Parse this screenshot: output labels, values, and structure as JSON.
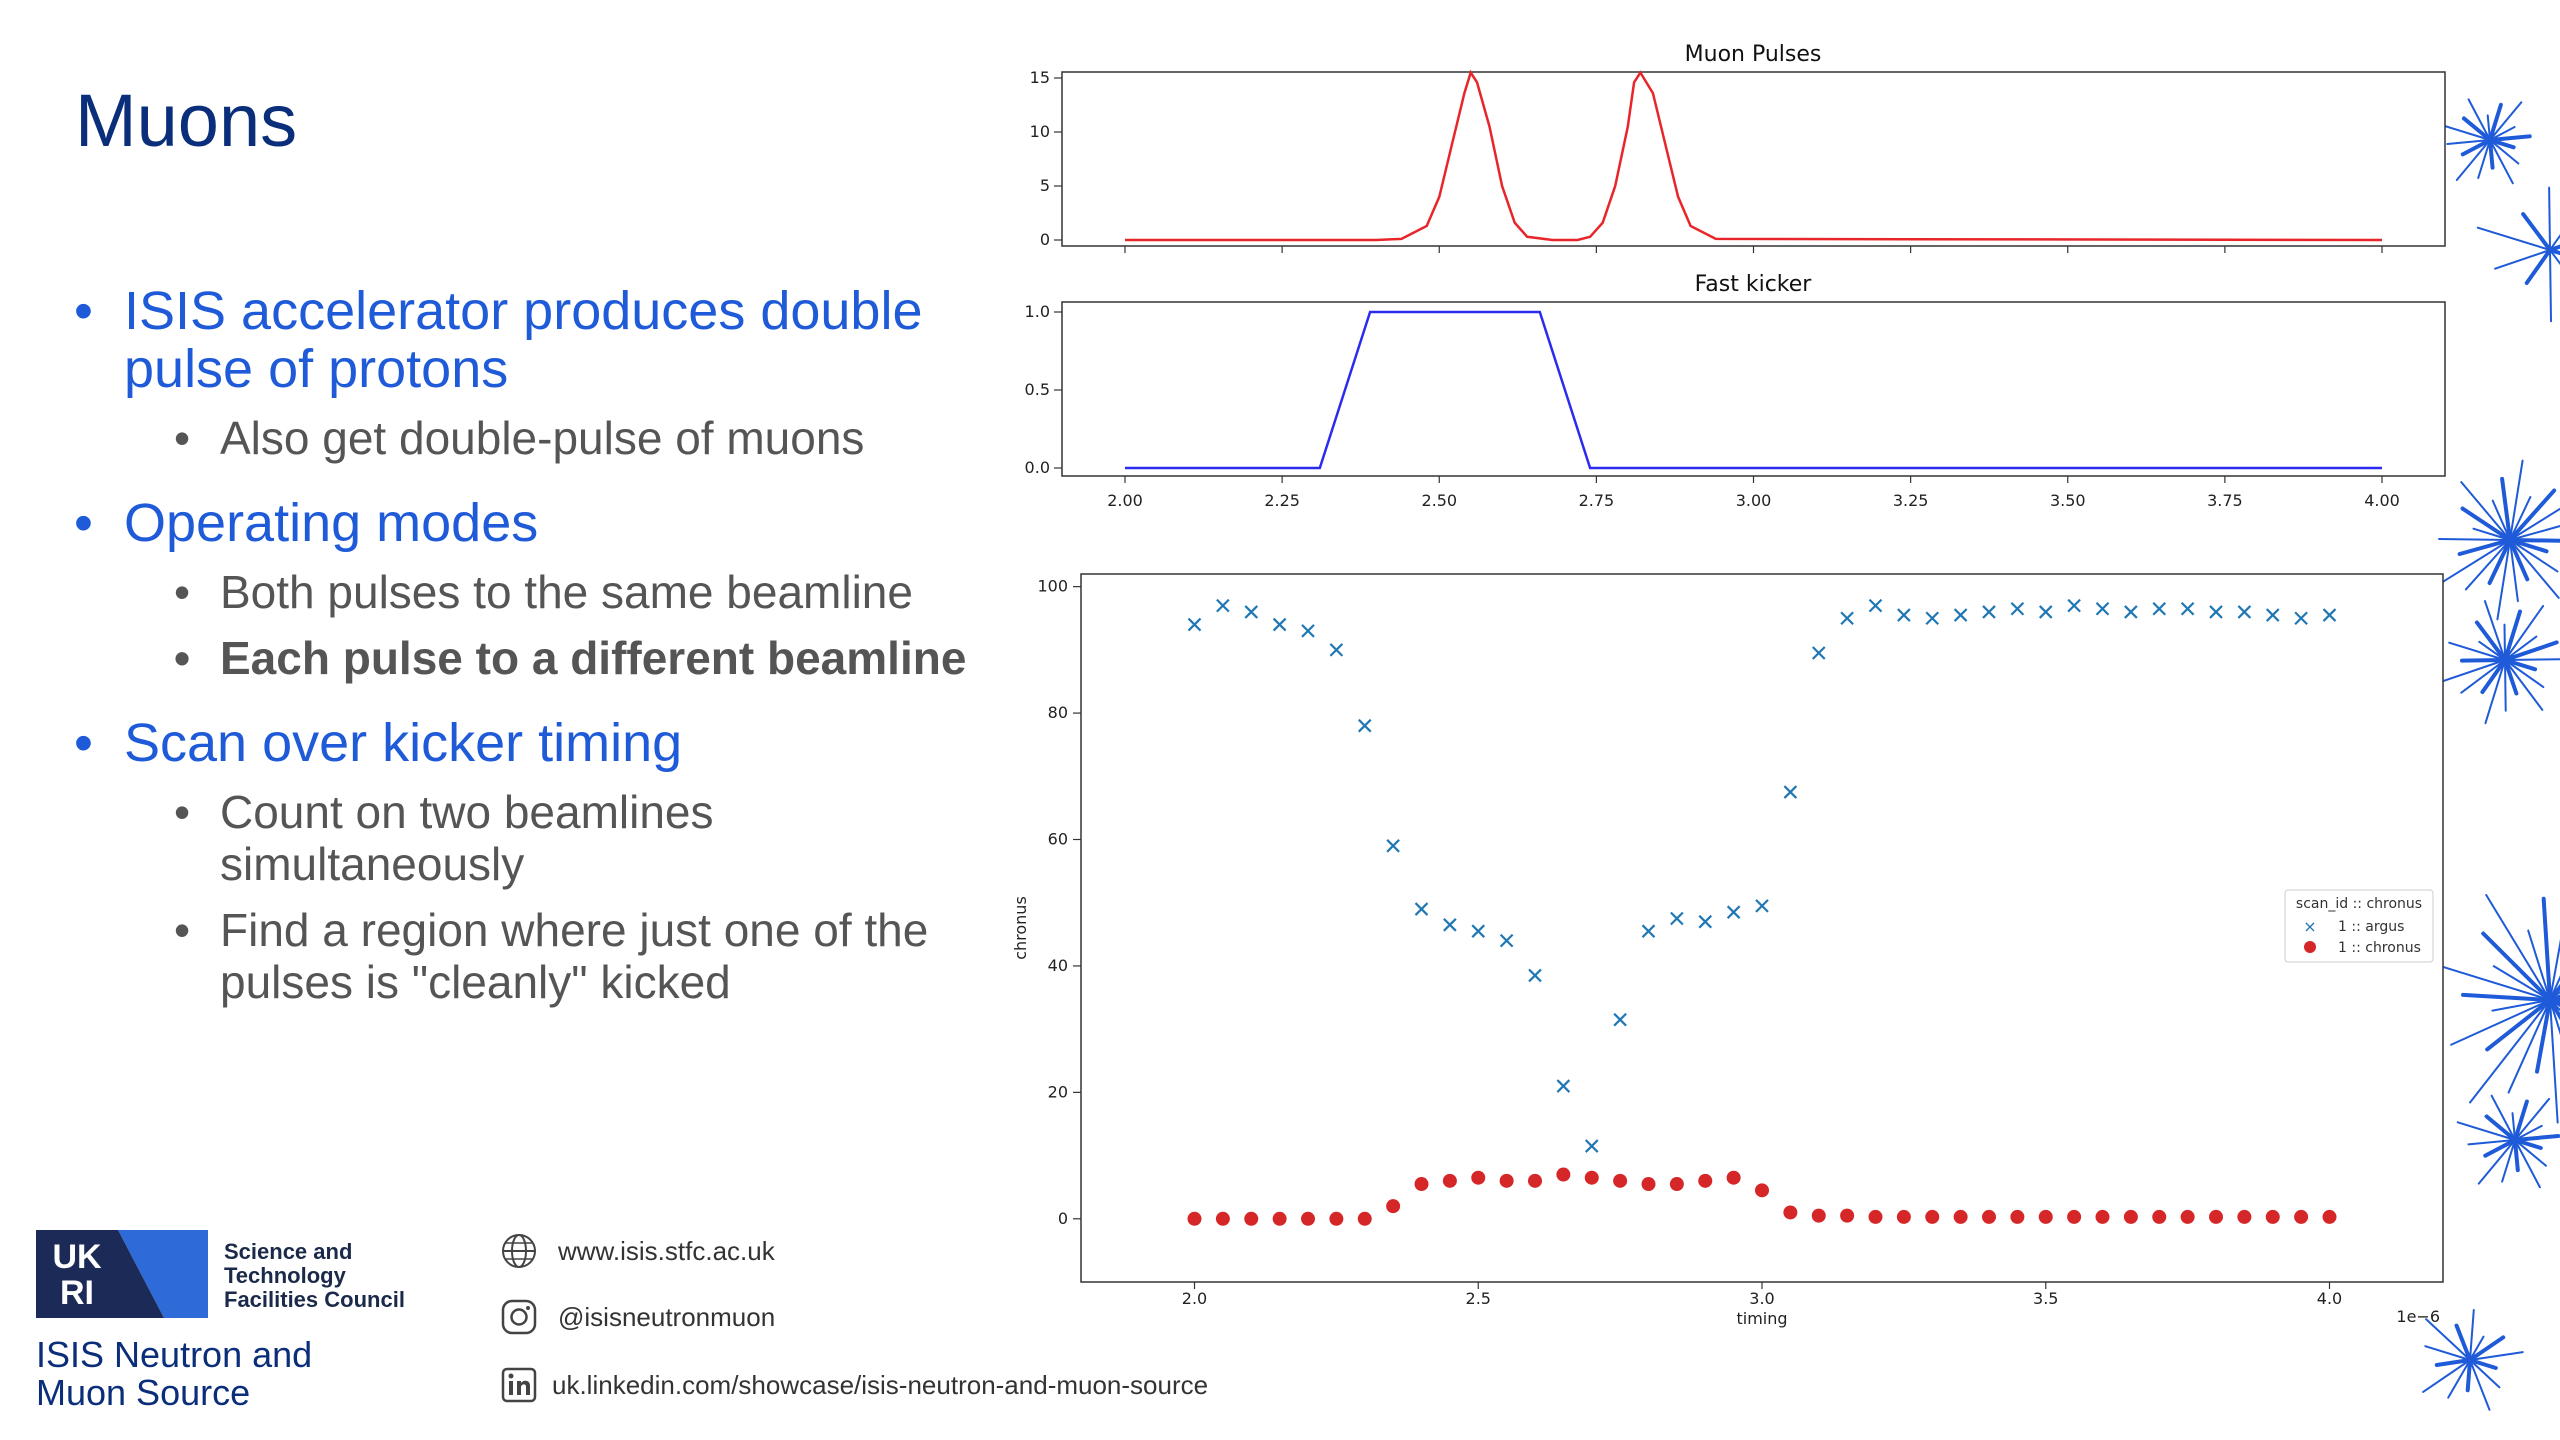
{
  "slide": {
    "title": "Muons",
    "bullets": [
      {
        "text": "ISIS accelerator produces double pulse of protons",
        "subs": [
          {
            "text": "Also get double-pulse of muons",
            "bold": false
          }
        ]
      },
      {
        "text": "Operating modes",
        "subs": [
          {
            "text": "Both pulses to the same beamline",
            "bold": false
          },
          {
            "text": "Each pulse to a different beamline",
            "bold": true
          }
        ]
      },
      {
        "text": "Scan over kicker timing",
        "subs": [
          {
            "text": "Count on two beamlines simultaneously",
            "bold": false
          },
          {
            "text": "Find a region where just one of the pulses is \"cleanly\" kicked",
            "bold": false
          }
        ]
      }
    ]
  },
  "footer": {
    "org_lines": [
      "Science and",
      "Technology",
      "Facilities Council"
    ],
    "logo_text": "UKRI",
    "isis_lines": [
      "ISIS Neutron and",
      "Muon Source"
    ],
    "website": "www.isis.stfc.ac.uk",
    "instagram": "@isisneutronmuon",
    "linkedin": "uk.linkedin.com/showcase/isis-neutron-and-muon-source",
    "icons": [
      "globe-icon",
      "instagram-icon",
      "linkedin-icon"
    ]
  },
  "chart_data": [
    {
      "type": "line",
      "title": "Muon Pulses",
      "xlim": [
        2.0,
        4.0
      ],
      "ylim": [
        0,
        16
      ],
      "yticks": [
        0,
        5,
        10,
        15
      ],
      "color": "#e8262a",
      "x": [
        2.0,
        2.4,
        2.44,
        2.48,
        2.5,
        2.52,
        2.54,
        2.55,
        2.56,
        2.58,
        2.6,
        2.62,
        2.64,
        2.68,
        2.72,
        2.74,
        2.76,
        2.78,
        2.8,
        2.81,
        2.82,
        2.84,
        2.86,
        2.88,
        2.9,
        2.94,
        4.0
      ],
      "y": [
        0,
        0,
        0.1,
        1.3,
        4.0,
        8.8,
        13.6,
        15.5,
        14.6,
        10.5,
        5.0,
        1.6,
        0.3,
        0,
        0,
        0.3,
        1.6,
        5.0,
        10.5,
        14.6,
        15.5,
        13.6,
        8.8,
        4.0,
        1.3,
        0.1,
        0
      ]
    },
    {
      "type": "line",
      "title": "Fast kicker",
      "xlim": [
        2.0,
        4.0
      ],
      "ylim": [
        0,
        1.0
      ],
      "yticks": [
        "0.0",
        "0.5",
        "1.0"
      ],
      "xticks": [
        "2.00",
        "2.25",
        "2.50",
        "2.75",
        "3.00",
        "3.25",
        "3.50",
        "3.75",
        "4.00"
      ],
      "color": "#2b2bef",
      "x": [
        2.0,
        2.31,
        2.39,
        2.66,
        2.74,
        4.0
      ],
      "y": [
        0,
        0,
        1,
        1,
        0,
        0
      ]
    },
    {
      "type": "scatter",
      "xlabel": "timing",
      "ylabel": "chronus",
      "x_offset_label": "1e−6",
      "xlim": [
        1.8,
        4.2
      ],
      "ylim": [
        -10,
        102
      ],
      "xticks": [
        "2.0",
        "2.5",
        "3.0",
        "3.5",
        "4.0"
      ],
      "yticks": [
        0,
        20,
        40,
        60,
        80,
        100
      ],
      "legend": {
        "title": "scan_id :: chronus",
        "position": "right"
      },
      "x": [
        2.0,
        2.05,
        2.1,
        2.15,
        2.2,
        2.25,
        2.3,
        2.35,
        2.4,
        2.45,
        2.5,
        2.55,
        2.6,
        2.65,
        2.7,
        2.75,
        2.8,
        2.85,
        2.9,
        2.95,
        3.0,
        3.05,
        3.1,
        3.15,
        3.2,
        3.25,
        3.3,
        3.35,
        3.4,
        3.45,
        3.5,
        3.55,
        3.6,
        3.65,
        3.7,
        3.75,
        3.8,
        3.85,
        3.9,
        3.95,
        4.0
      ],
      "series": [
        {
          "name": "1 :: argus",
          "marker": "x",
          "color": "#1f77b4",
          "values": [
            94,
            97,
            96,
            94,
            93,
            90,
            78,
            59,
            49,
            46.5,
            45.5,
            44,
            38.5,
            21,
            11.5,
            31.5,
            45.5,
            47.5,
            47,
            48.5,
            49.5,
            67.5,
            89.5,
            95,
            97,
            95.5,
            95,
            95.5,
            96,
            96.5,
            96,
            97,
            96.5,
            96,
            96.5,
            96.5,
            96,
            96,
            95.5,
            95,
            95.5
          ]
        },
        {
          "name": "1 :: chronus",
          "marker": "o",
          "color": "#d62728",
          "values": [
            0,
            0,
            0,
            0,
            0,
            0,
            0,
            2,
            5.5,
            6,
            6.5,
            6,
            6,
            7,
            6.5,
            6,
            5.5,
            5.5,
            6,
            6.5,
            4.5,
            1,
            0.5,
            0.5,
            0.3,
            0.3,
            0.3,
            0.3,
            0.3,
            0.3,
            0.3,
            0.3,
            0.3,
            0.3,
            0.3,
            0.3,
            0.3,
            0.3,
            0.3,
            0.3,
            0.3
          ]
        }
      ]
    }
  ]
}
